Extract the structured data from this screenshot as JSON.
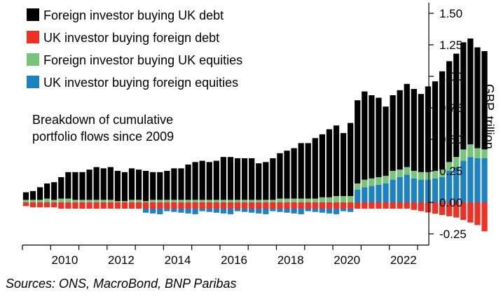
{
  "chart_data": {
    "type": "bar",
    "stacked": true,
    "ylabel": "GBP, trillion",
    "ylim": [
      -0.3,
      1.6
    ],
    "yticks": [
      1.5,
      1.25,
      1.0,
      0.75,
      0.5,
      0.25,
      0.0,
      -0.25
    ],
    "ytick_labels": [
      "1.50",
      "1.25",
      "1.00",
      "0.75",
      "0.50",
      "0.25",
      "0.00",
      "-0.25"
    ],
    "xticks": [
      2010,
      2012,
      2014,
      2016,
      2018,
      2020,
      2022
    ],
    "xtick_labels": [
      "2010",
      "2012",
      "2014",
      "2016",
      "2018",
      "2020",
      "2022"
    ],
    "x_start": 2009.0,
    "x_step": 0.25,
    "annotation": [
      "Breakdown of cumulative",
      "portfolio flows since 2009"
    ],
    "source": "Sources: ONS, MacroBond, BNP Paribas",
    "legend_position": "top-left",
    "series": [
      {
        "name": "Foreign investor buying UK debt",
        "color": "#000000",
        "stack": "pos",
        "values": [
          0.06,
          0.07,
          0.1,
          0.12,
          0.14,
          0.17,
          0.21,
          0.22,
          0.22,
          0.24,
          0.26,
          0.25,
          0.26,
          0.24,
          0.23,
          0.25,
          0.24,
          0.24,
          0.22,
          0.22,
          0.23,
          0.25,
          0.25,
          0.28,
          0.3,
          0.31,
          0.3,
          0.31,
          0.34,
          0.34,
          0.33,
          0.33,
          0.33,
          0.29,
          0.3,
          0.33,
          0.36,
          0.38,
          0.4,
          0.44,
          0.44,
          0.48,
          0.5,
          0.54,
          0.56,
          0.5,
          0.58,
          0.66,
          0.7,
          0.66,
          0.63,
          0.55,
          0.6,
          0.63,
          0.66,
          0.65,
          0.62,
          0.68,
          0.71,
          0.78,
          0.8,
          0.82,
          0.85,
          0.84,
          0.8,
          0.78
        ]
      },
      {
        "name": "Foreign investor buying UK equities",
        "color": "#78c47a",
        "stack": "pos",
        "values": [
          0.02,
          0.02,
          0.02,
          0.03,
          0.02,
          0.03,
          0.03,
          0.02,
          0.02,
          0.02,
          0.02,
          0.02,
          0.02,
          0.01,
          0.01,
          0.02,
          0.02,
          0.01,
          0.02,
          0.02,
          0.02,
          0.02,
          0.02,
          0.02,
          0.02,
          0.02,
          0.02,
          0.02,
          0.02,
          0.02,
          0.02,
          0.02,
          0.02,
          0.02,
          0.02,
          0.02,
          0.03,
          0.03,
          0.03,
          0.03,
          0.03,
          0.03,
          0.04,
          0.04,
          0.05,
          0.05,
          0.05,
          0.05,
          0.06,
          0.06,
          0.06,
          0.06,
          0.07,
          0.06,
          0.06,
          0.06,
          0.06,
          0.06,
          0.06,
          0.06,
          0.07,
          0.08,
          0.09,
          0.1,
          0.08,
          0.07
        ]
      },
      {
        "name": "UK investor buying foreign equities",
        "color": "#1f82c0",
        "stack": "pos",
        "values": [
          0.0,
          0.0,
          0.0,
          0.0,
          0.0,
          0.0,
          0.0,
          0.0,
          0.0,
          0.0,
          0.0,
          0.0,
          0.0,
          0.0,
          0.0,
          0.0,
          0.0,
          0.0,
          0.0,
          0.0,
          0.0,
          0.0,
          0.0,
          0.0,
          0.0,
          0.0,
          0.0,
          0.0,
          0.0,
          0.0,
          0.0,
          0.0,
          0.0,
          0.0,
          0.0,
          0.0,
          0.0,
          0.0,
          0.0,
          0.0,
          0.0,
          0.0,
          0.0,
          0.0,
          0.0,
          0.0,
          0.0,
          0.1,
          0.12,
          0.13,
          0.14,
          0.15,
          0.18,
          0.2,
          0.22,
          0.19,
          0.18,
          0.18,
          0.19,
          0.2,
          0.25,
          0.28,
          0.33,
          0.36,
          0.35,
          0.35
        ]
      },
      {
        "name": "UK investor buying foreign debt",
        "color": "#ee3124",
        "stack": "mixed",
        "values": [
          -0.03,
          -0.04,
          -0.04,
          -0.04,
          -0.04,
          -0.05,
          -0.05,
          -0.05,
          -0.05,
          -0.05,
          -0.05,
          -0.05,
          -0.05,
          -0.05,
          -0.05,
          -0.05,
          -0.05,
          -0.05,
          -0.05,
          -0.05,
          -0.05,
          -0.05,
          -0.05,
          -0.05,
          -0.05,
          -0.05,
          -0.05,
          -0.05,
          -0.05,
          -0.05,
          -0.05,
          -0.05,
          -0.05,
          -0.05,
          -0.05,
          -0.05,
          -0.05,
          -0.05,
          -0.05,
          -0.05,
          -0.05,
          -0.05,
          -0.05,
          -0.05,
          -0.05,
          -0.05,
          -0.05,
          -0.05,
          -0.05,
          -0.05,
          -0.05,
          -0.05,
          -0.05,
          -0.05,
          -0.05,
          -0.06,
          -0.07,
          -0.08,
          -0.09,
          -0.1,
          -0.11,
          -0.12,
          -0.14,
          -0.16,
          -0.18,
          -0.23
        ]
      },
      {
        "name": "UK investor buying foreign equities (negative)",
        "color": "#1f82c0",
        "stack": "neg",
        "values": [
          -0.0,
          -0.0,
          -0.0,
          -0.0,
          -0.0,
          -0.0,
          -0.0,
          -0.0,
          -0.0,
          -0.0,
          -0.0,
          -0.0,
          -0.0,
          -0.0,
          -0.0,
          -0.0,
          -0.0,
          -0.0,
          -0.0,
          -0.0,
          -0.0,
          -0.0,
          -0.0,
          -0.0,
          -0.0,
          -0.0,
          -0.0,
          -0.0,
          -0.0,
          -0.0,
          -0.0,
          -0.0,
          -0.0,
          -0.0,
          -0.0,
          -0.0,
          -0.0,
          -0.0,
          -0.0,
          -0.0,
          -0.0,
          -0.0,
          -0.0,
          -0.0,
          -0.0,
          -0.0,
          -0.0,
          -0.0,
          -0.0,
          -0.0,
          -0.0,
          -0.0,
          -0.0,
          -0.0,
          -0.0,
          -0.0,
          -0.0,
          -0.0,
          -0.0,
          -0.0,
          -0.0,
          -0.0,
          -0.0,
          -0.0,
          -0.0,
          -0.0
        ]
      }
    ],
    "legend": [
      {
        "label": "Foreign investor buying UK debt",
        "color": "#000000"
      },
      {
        "label": "UK investor buying foreign debt",
        "color": "#ee3124"
      },
      {
        "label": "Foreign investor buying UK equities",
        "color": "#78c47a"
      },
      {
        "label": "UK investor buying foreign equities",
        "color": "#1f82c0"
      }
    ]
  }
}
